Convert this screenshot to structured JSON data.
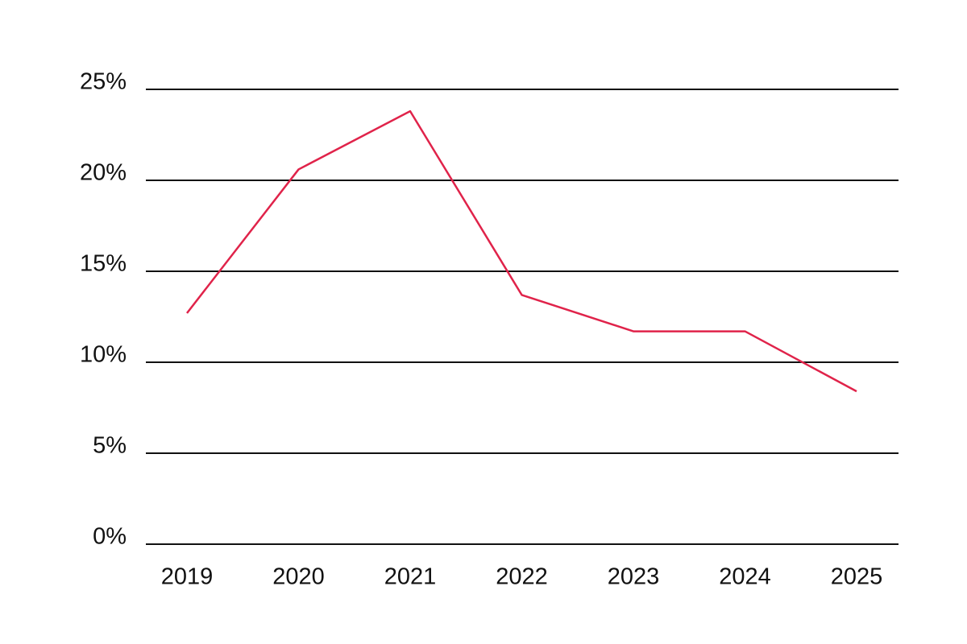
{
  "chart_data": {
    "type": "line",
    "categories": [
      "2019",
      "2020",
      "2021",
      "2022",
      "2023",
      "2024",
      "2025"
    ],
    "series": [
      {
        "color": "#e0234a",
        "values": [
          12.7,
          20.6,
          23.8,
          13.7,
          11.7,
          11.7,
          8.4
        ]
      }
    ],
    "ylim": [
      0,
      25
    ],
    "yticks": [
      {
        "value": 0,
        "label": "0%"
      },
      {
        "value": 5,
        "label": "5%"
      },
      {
        "value": 10,
        "label": "10%"
      },
      {
        "value": 15,
        "label": "15%"
      },
      {
        "value": 20,
        "label": "20%"
      },
      {
        "value": 25,
        "label": "25%"
      }
    ],
    "grid": true
  }
}
